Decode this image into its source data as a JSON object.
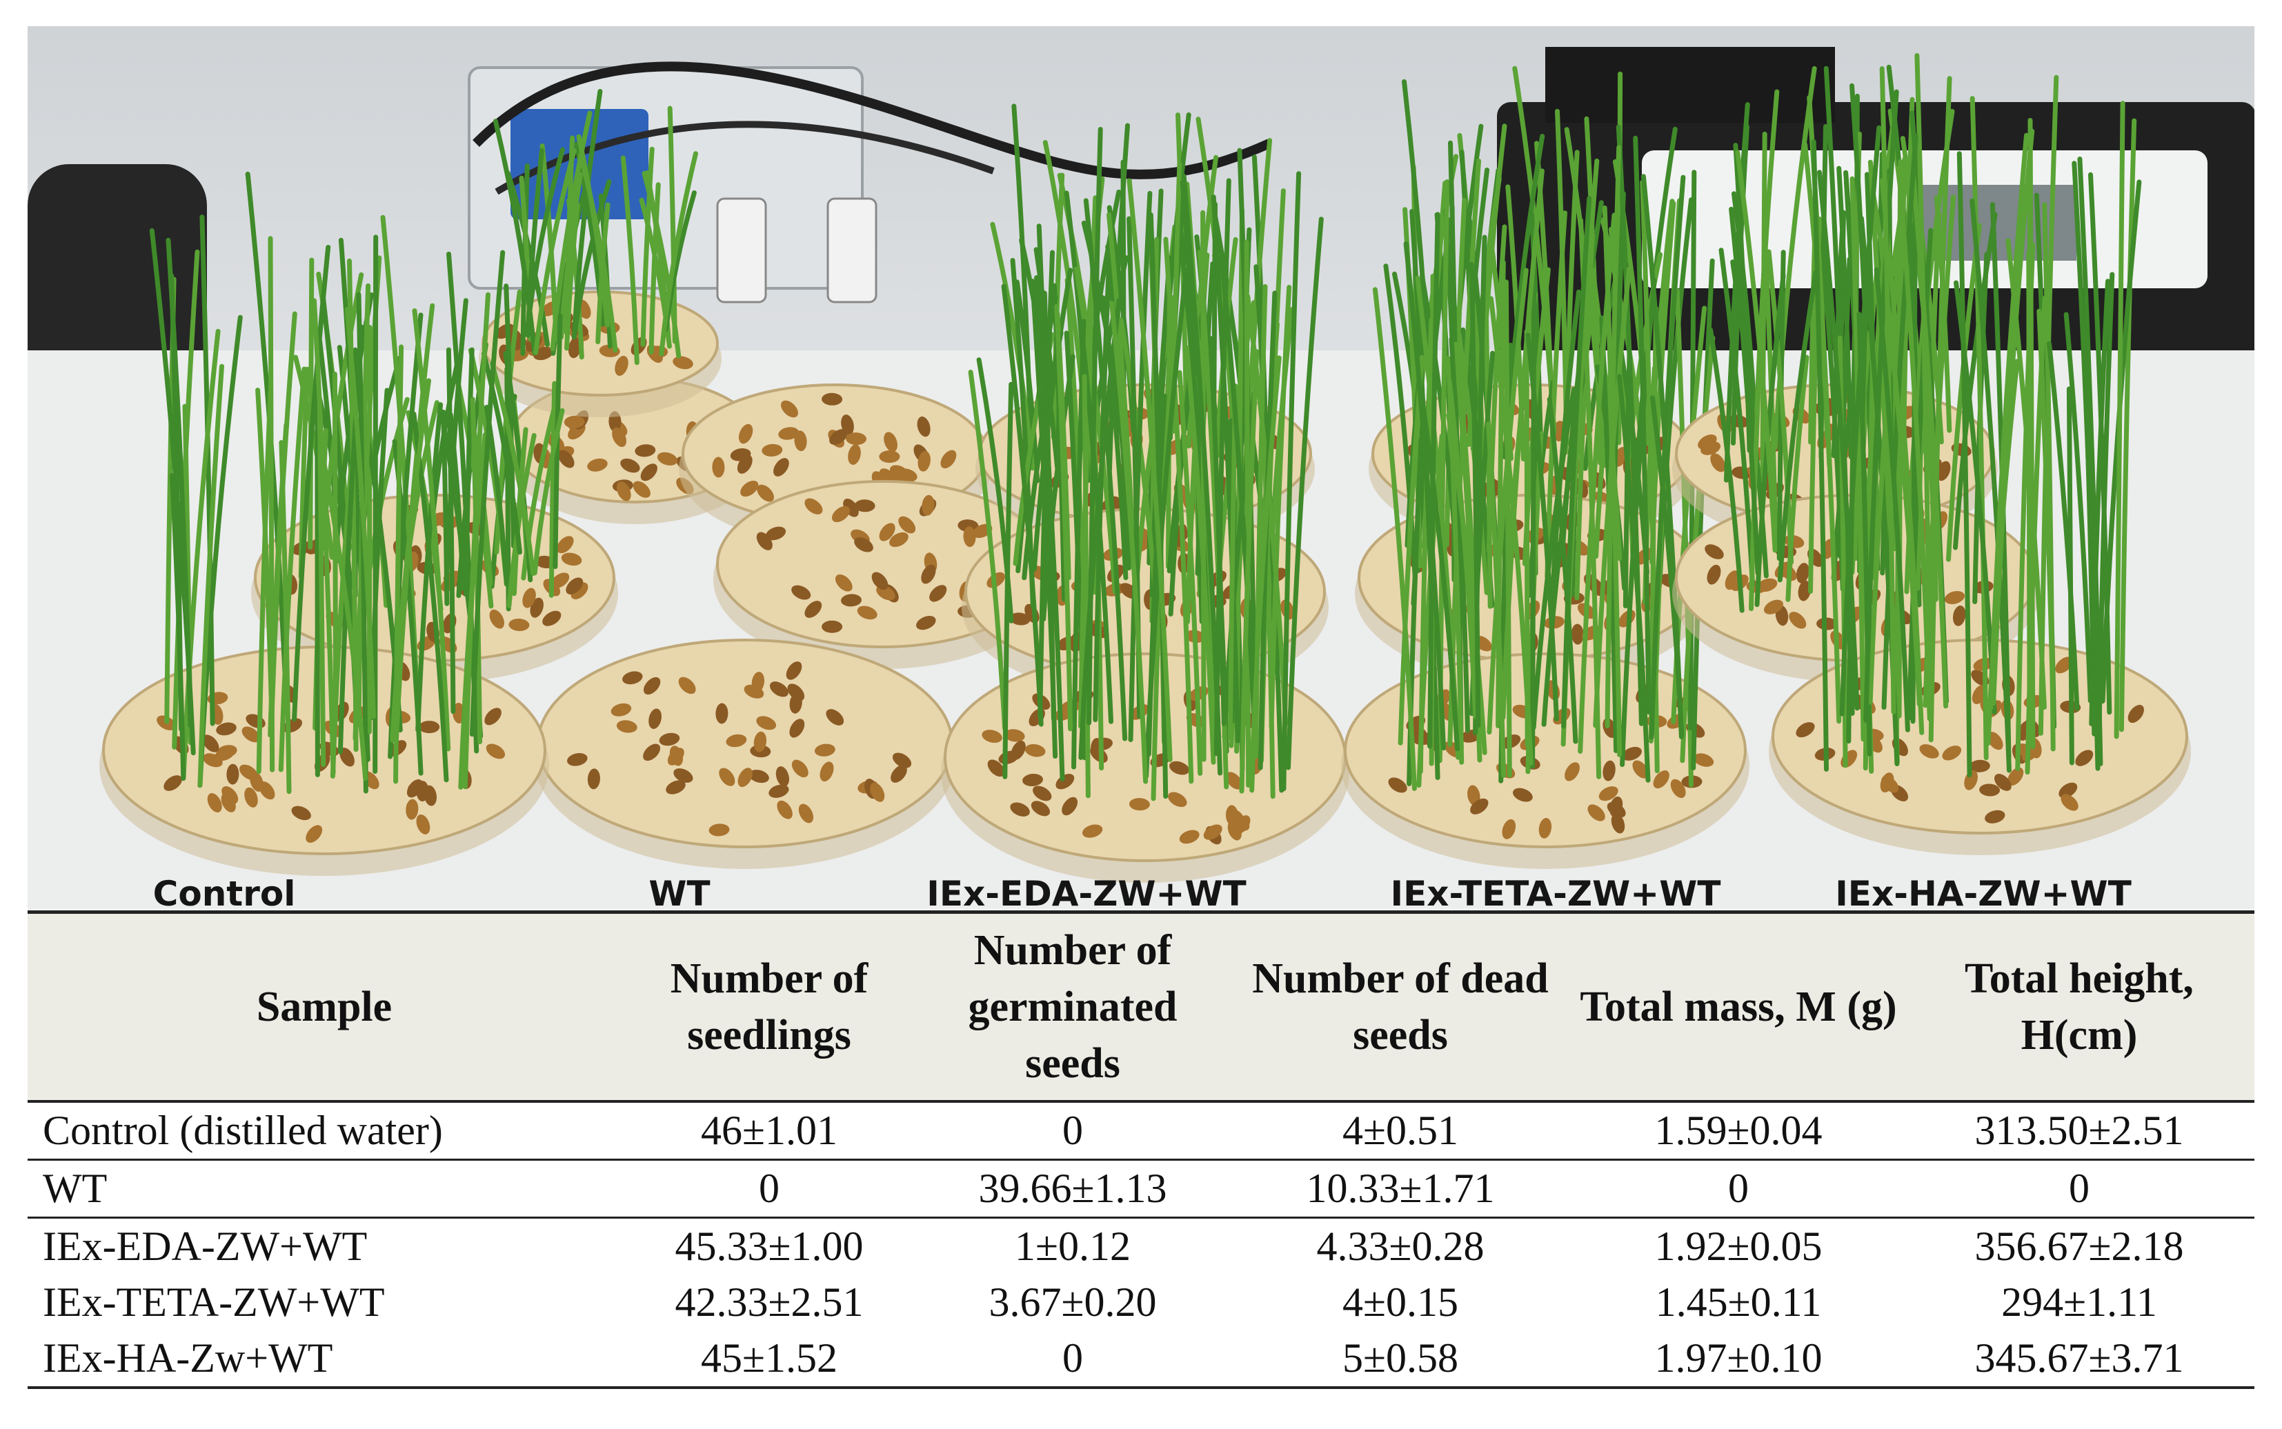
{
  "photo": {
    "labels": [
      "Control",
      "WT",
      "IEx-EDA-ZW+WT",
      "IEx-TETA-ZW+WT",
      "IEx-HA-ZW+WT"
    ]
  },
  "table": {
    "headers": [
      "Sample",
      "Number of seedlings",
      "Number of germinated seeds",
      "Number of dead seeds",
      "Total mass, M (g)",
      "Total height, H(cm)"
    ],
    "rows": [
      [
        "Control (distilled water)",
        "46±1.01",
        "0",
        "4±0.51",
        "1.59±0.04",
        "313.50±2.51"
      ],
      [
        "WT",
        "0",
        "39.66±1.13",
        "10.33±1.71",
        "0",
        "0"
      ],
      [
        "IEx-EDA-ZW+WT",
        "45.33±1.00",
        "1±0.12",
        "4.33±0.28",
        "1.92±0.05",
        "356.67±2.18"
      ],
      [
        "IEx-TETA-ZW+WT",
        "42.33±2.51",
        "3.67±0.20",
        "4±0.15",
        "1.45±0.11",
        "294±1.11"
      ],
      [
        "IEx-HA-Zw+WT",
        "45±1.52",
        "0",
        "5±0.58",
        "1.97±0.10",
        "345.67±3.71"
      ]
    ]
  }
}
